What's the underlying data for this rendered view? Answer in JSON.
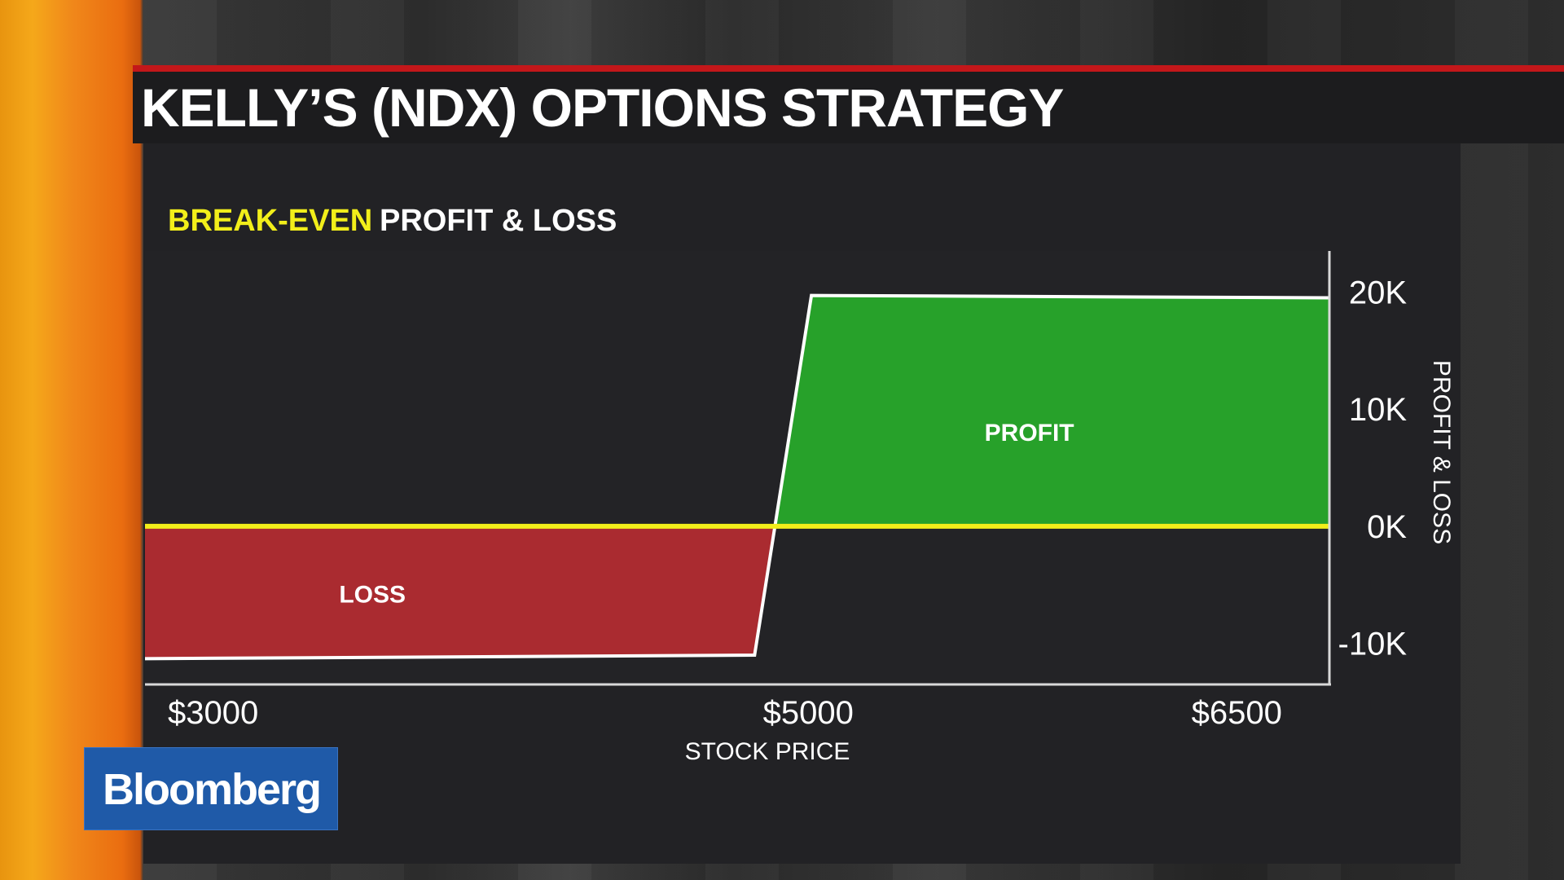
{
  "header": {
    "title": "KELLY’S (NDX) OPTIONS STRATEGY"
  },
  "branding": {
    "logo_text": "Bloomberg"
  },
  "colors": {
    "title_rule": "#c3171a",
    "break_even": "#f2ee1a",
    "profit_fill": "#27a12a",
    "loss_fill": "#aa2b30",
    "payoff_line": "#ffffff",
    "logo_bg": "#1f5aa8"
  },
  "chart_data": {
    "type": "area",
    "legend": [
      "BREAK-EVEN",
      "PROFIT & LOSS"
    ],
    "xlabel": "STOCK PRICE",
    "ylabel": "PROFIT & LOSS",
    "x_ticks": [
      {
        "value": 3000,
        "label": "$3000"
      },
      {
        "value": 5000,
        "label": "$5000"
      },
      {
        "value": 6500,
        "label": "$6500"
      }
    ],
    "y_ticks": [
      {
        "value": 20000,
        "label": "20K"
      },
      {
        "value": 10000,
        "label": "10K"
      },
      {
        "value": 0,
        "label": "0K"
      },
      {
        "value": -10000,
        "label": "-10K"
      }
    ],
    "xlim": [
      2900,
      6650
    ],
    "ylim": [
      -13500,
      23500
    ],
    "series": [
      {
        "name": "PROFIT & LOSS",
        "points": [
          [
            2900,
            -11300
          ],
          [
            4830,
            -11000
          ],
          [
            5010,
            19700
          ],
          [
            6650,
            19500
          ]
        ]
      }
    ],
    "break_even_value": 0,
    "annotations": [
      {
        "text": "PROFIT",
        "x": 5700,
        "y": 8000
      },
      {
        "text": "LOSS",
        "x": 3620,
        "y": -5800
      }
    ],
    "grid": false
  }
}
